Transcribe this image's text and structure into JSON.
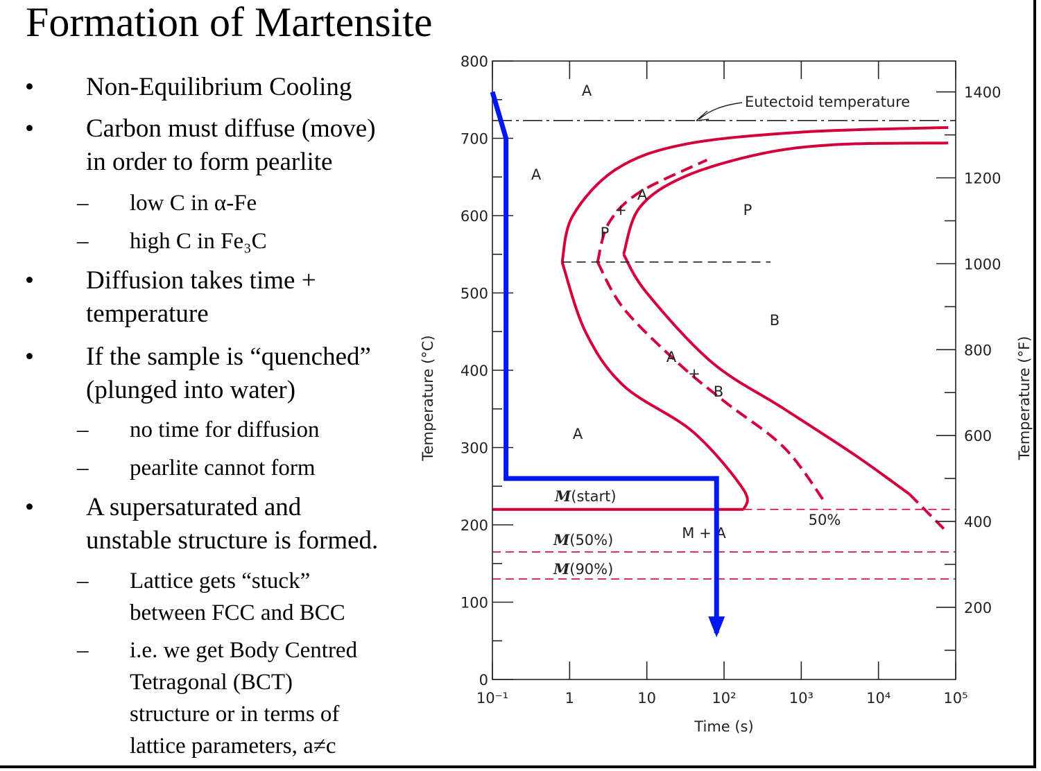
{
  "slide": {
    "title": "Formation of Martensite",
    "bullet_marker": "•",
    "sub_marker": "–",
    "items": [
      {
        "level": 1,
        "lines": [
          "Non-Equilibrium Cooling"
        ]
      },
      {
        "level": 1,
        "lines": [
          "Carbon must diffuse (move)",
          "in order to form pearlite"
        ]
      },
      {
        "level": 2,
        "lines": [
          "low C in α-Fe"
        ]
      },
      {
        "level": 2,
        "lines": [
          "high C in Fe₃C"
        ]
      },
      {
        "level": 1,
        "lines": [
          "Diffusion takes time +",
          "temperature"
        ]
      },
      {
        "level": 1,
        "lines": [
          "If the sample is “quenched”",
          "(plunged into water)"
        ]
      },
      {
        "level": 2,
        "lines": [
          "no time for diffusion"
        ]
      },
      {
        "level": 2,
        "lines": [
          "pearlite cannot form"
        ]
      },
      {
        "level": 1,
        "lines": [
          "A supersaturated and",
          "unstable structure is formed."
        ]
      },
      {
        "level": 2,
        "lines": [
          "Lattice gets “stuck”",
          "between FCC and BCC"
        ]
      },
      {
        "level": 2,
        "lines": [
          "i.e. we get Body Centred",
          "Tetragonal (BCT)",
          "structure or in terms of",
          "lattice parameters, a≠c"
        ]
      }
    ]
  },
  "chart_data": {
    "type": "line",
    "title": "",
    "xlabel": "Time (s)",
    "ylabel": "Temperature (°C)",
    "y2label": "Temperature (°F)",
    "x_scale": "log",
    "xlim": [
      0.1,
      100000
    ],
    "ylim": [
      0,
      800
    ],
    "y2lim_F": [
      32,
      1472
    ],
    "x_tick_labels": [
      "10⁻¹",
      "1",
      "10",
      "10²",
      "10³",
      "10⁴",
      "10⁵"
    ],
    "y_ticks": [
      0,
      100,
      200,
      300,
      400,
      500,
      600,
      700,
      800
    ],
    "y2_ticks": [
      200,
      400,
      600,
      800,
      1000,
      1200,
      1400
    ],
    "colors": {
      "curve": "#d4003c",
      "path": "#0018f0",
      "axis": "#222222"
    },
    "series": [
      {
        "style": "solid",
        "points": [
          [
            0.8,
            540
          ],
          [
            1.1,
            600
          ],
          [
            4,
            660
          ],
          [
            30,
            692
          ],
          [
            1000,
            708
          ],
          [
            80000,
            714
          ]
        ]
      },
      {
        "style": "solid",
        "points": [
          [
            0.8,
            540
          ],
          [
            1.6,
            450
          ],
          [
            5,
            380
          ],
          [
            40,
            320
          ],
          [
            180,
            245
          ],
          [
            180,
            220
          ]
        ]
      },
      {
        "style": "dashed",
        "points": [
          [
            2.3,
            540
          ],
          [
            3.2,
            590
          ],
          [
            8,
            630
          ],
          [
            60,
            672
          ]
        ]
      },
      {
        "style": "dashed",
        "points": [
          [
            2.3,
            540
          ],
          [
            5,
            480
          ],
          [
            25,
            410
          ],
          [
            100,
            360
          ],
          [
            600,
            300
          ],
          [
            2000,
            230
          ]
        ]
      },
      {
        "style": "solid",
        "points": [
          [
            5,
            550
          ],
          [
            8,
            610
          ],
          [
            30,
            650
          ],
          [
            300,
            680
          ],
          [
            3000,
            692
          ],
          [
            80000,
            694
          ]
        ]
      },
      {
        "style": "solid",
        "points": [
          [
            5,
            550
          ],
          [
            10,
            500
          ],
          [
            70,
            410
          ],
          [
            600,
            350
          ],
          [
            5000,
            290
          ],
          [
            25000,
            240
          ]
        ]
      },
      {
        "style": "dashed",
        "points": [
          [
            25000,
            240
          ],
          [
            70000,
            195
          ]
        ]
      }
    ],
    "horizontal_lines": [
      {
        "label": "Eutectoid temperature",
        "y": 723,
        "style": "dash-dot"
      },
      {
        "label": "M(start)",
        "y": 220,
        "style": "solid-then-dashed",
        "solid_until_x": 180
      },
      {
        "label": "M(50%)",
        "y": 165,
        "style": "dashed"
      },
      {
        "label": "M(90%)",
        "y": 130,
        "style": "dashed"
      },
      {
        "label": "",
        "y": 540,
        "style": "dashed",
        "x_range": [
          0.8,
          400
        ]
      }
    ],
    "cooling_path": [
      [
        0.1,
        760
      ],
      [
        0.15,
        700
      ],
      [
        0.15,
        260
      ],
      [
        80,
        260
      ],
      [
        80,
        60
      ]
    ],
    "region_labels": [
      "A",
      "A",
      "A",
      "P",
      "B",
      "M + A",
      "50%"
    ],
    "transition_labels": [
      {
        "top": "A",
        "mid": "+",
        "bottom": "P"
      },
      {
        "top": "A",
        "mid": "+",
        "bottom": "B"
      }
    ],
    "grid": false
  }
}
